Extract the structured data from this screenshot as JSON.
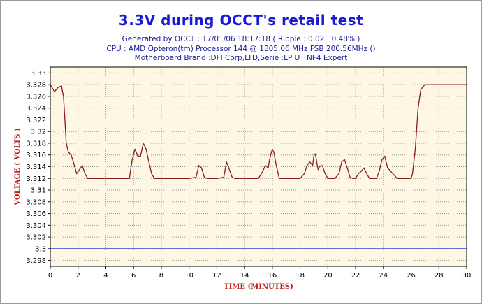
{
  "header": {
    "title": "3.3V during OCCT's retail test",
    "line1": "Generated by OCCT : 17/01/06 18:17:18 ( Ripple : 0.02 : 0.48% )",
    "line2": "CPU : AMD Opteron(tm) Processor 144    @ 1805.06 MHz FSB 200.56MHz ()",
    "line3": "Motherboard Brand :DFI Corp,LTD,Serie :LP UT NF4 Expert"
  },
  "colors": {
    "plot_bg": "#fdf7e3",
    "grid": "#9a9a9a",
    "series_line": "#8b1a1a",
    "reference_line": "#1a1ae0",
    "title": "#1a1ad6",
    "subtitle": "#1a1a9a",
    "axis_label": "#c21a1a"
  },
  "chart_data": {
    "type": "line",
    "xlabel": "TIME (MINUTES)",
    "ylabel": "VOLTAGE ( VOLTS )",
    "xlim": [
      0,
      30
    ],
    "ylim": [
      3.297,
      3.331
    ],
    "x_ticks": [
      "0",
      "2",
      "4",
      "6",
      "8",
      "10",
      "12",
      "14",
      "16",
      "18",
      "20",
      "22",
      "24",
      "26",
      "28",
      "30"
    ],
    "y_ticks": [
      "3.33",
      "3.328",
      "3.326",
      "3.324",
      "3.322",
      "3.32",
      "3.318",
      "3.316",
      "3.314",
      "3.312",
      "3.31",
      "3.308",
      "3.306",
      "3.304",
      "3.302",
      "3.3",
      "3.298"
    ],
    "grid": true,
    "reference_line": {
      "y": 3.3
    },
    "series": [
      {
        "x": [
          0,
          0.3,
          0.55,
          0.8,
          0.95,
          1.05,
          1.15,
          1.3,
          1.5,
          1.7,
          1.9,
          2.1,
          2.3,
          2.5,
          2.7,
          3,
          4,
          5,
          5.7,
          5.9,
          6.1,
          6.3,
          6.5,
          6.7,
          6.9,
          7.1,
          7.3,
          7.5,
          8,
          9,
          10,
          10.5,
          10.7,
          10.9,
          11.1,
          11.3,
          12,
          12.5,
          12.7,
          12.9,
          13.1,
          13.3,
          14,
          15,
          15.3,
          15.5,
          15.7,
          15.8,
          15.9,
          16,
          16.1,
          16.3,
          16.5,
          17,
          18,
          18.3,
          18.5,
          18.7,
          18.9,
          19,
          19.1,
          19.2,
          19.3,
          19.4,
          19.6,
          19.8,
          20,
          20.5,
          20.8,
          21,
          21.2,
          21.4,
          21.6,
          21.8,
          22,
          22.2,
          22.4,
          22.6,
          22.8,
          23,
          23.5,
          23.7,
          23.9,
          24.1,
          24.3,
          25,
          26,
          26.1,
          26.3,
          26.5,
          26.7,
          27,
          28,
          29,
          30
        ],
        "y": [
          3.328,
          3.3268,
          3.3275,
          3.3278,
          3.326,
          3.322,
          3.318,
          3.3165,
          3.316,
          3.3145,
          3.3128,
          3.3135,
          3.3142,
          3.3128,
          3.312,
          3.312,
          3.312,
          3.312,
          3.312,
          3.3152,
          3.317,
          3.3158,
          3.3158,
          3.318,
          3.317,
          3.3148,
          3.3128,
          3.312,
          3.312,
          3.312,
          3.312,
          3.3122,
          3.3142,
          3.3138,
          3.3122,
          3.312,
          3.312,
          3.3122,
          3.3148,
          3.3135,
          3.3122,
          3.312,
          3.312,
          3.312,
          3.3132,
          3.3142,
          3.3138,
          3.3152,
          3.3162,
          3.317,
          3.3165,
          3.314,
          3.312,
          3.312,
          3.312,
          3.3128,
          3.3142,
          3.3148,
          3.3142,
          3.316,
          3.3162,
          3.3148,
          3.3135,
          3.314,
          3.3142,
          3.3128,
          3.312,
          3.312,
          3.3128,
          3.3148,
          3.3152,
          3.3138,
          3.3122,
          3.312,
          3.312,
          3.3128,
          3.3132,
          3.3138,
          3.3128,
          3.312,
          3.312,
          3.3132,
          3.3152,
          3.3158,
          3.3138,
          3.312,
          3.312,
          3.3128,
          3.317,
          3.324,
          3.3272,
          3.328,
          3.328,
          3.328,
          3.328
        ]
      }
    ]
  }
}
